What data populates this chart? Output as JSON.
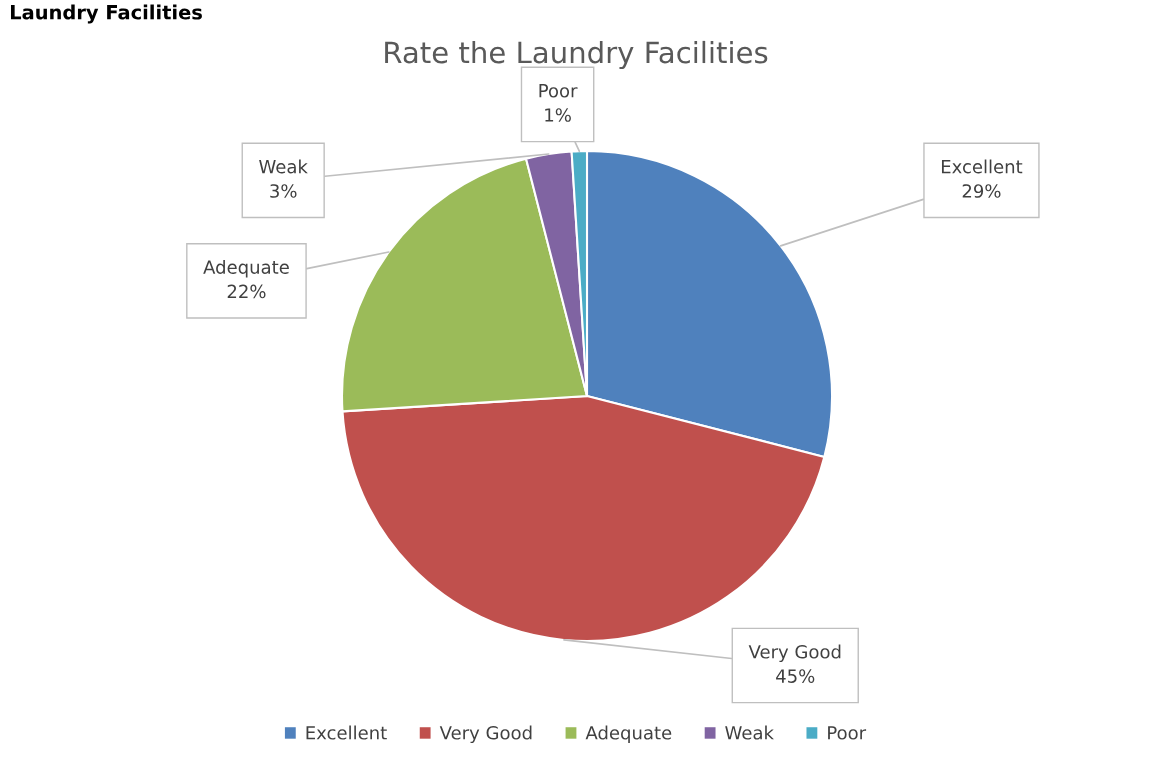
{
  "chart_data": {
    "type": "pie",
    "title": "Rate the Laundry Facilities",
    "annotations": [
      "Laundry Facilities"
    ],
    "categories": [
      "Excellent",
      "Very Good",
      "Adequate",
      "Weak",
      "Poor"
    ],
    "values": [
      29,
      45,
      22,
      3,
      1
    ],
    "value_labels": [
      "29%",
      "45%",
      "22%",
      "3%",
      "1%"
    ],
    "colors": [
      "#4f81bd",
      "#c0504d",
      "#9bbb59",
      "#8064a2",
      "#4bacc6"
    ],
    "legend": "bottom"
  }
}
